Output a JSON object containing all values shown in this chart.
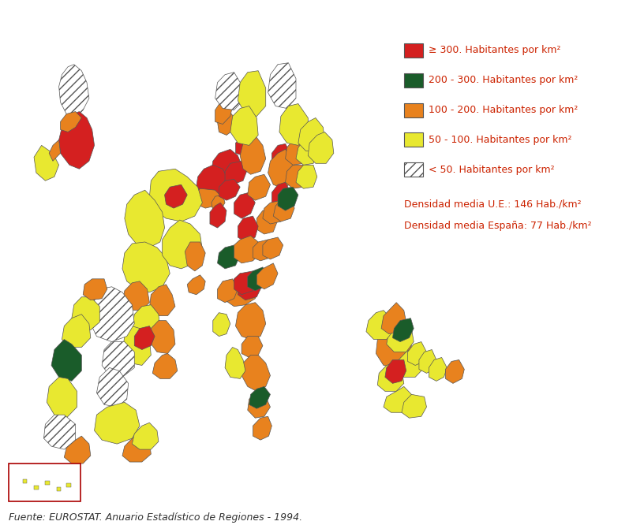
{
  "legend_items": [
    {
      "color": "#d42020",
      "label": "≥ 300. Habitantes por km²",
      "hatch": ""
    },
    {
      "color": "#1a5c2a",
      "label": "200 - 300. Habitantes por km²",
      "hatch": ""
    },
    {
      "color": "#e8821e",
      "label": "100 - 200. Habitantes por km²",
      "hatch": ""
    },
    {
      "color": "#e8e830",
      "label": "50 - 100. Habitantes por km²",
      "hatch": ""
    },
    {
      "color": "#ffffff",
      "label": "< 50. Habitantes por km²",
      "hatch": "///"
    }
  ],
  "density_ue": "Densidad media U.E.: 146 Hab./km²",
  "density_esp": "Densidad media España: 77 Hab./km²",
  "source": "Fuente: EUROSTAT. Anuario Estadístico de Regiones - 1994.",
  "text_color": "#cc2200",
  "source_color": "#333333",
  "background_color": "#ffffff",
  "fig_width": 7.97,
  "fig_height": 6.66,
  "dpi": 100
}
